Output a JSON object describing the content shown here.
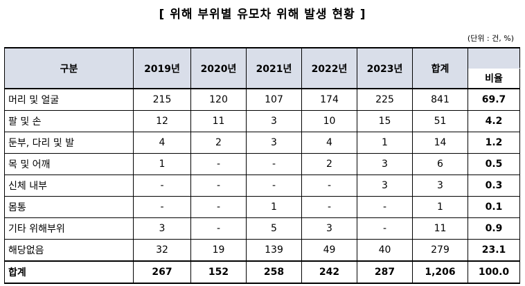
{
  "title": "[ 위해 부위별 유모차 위해 발생 현황 ]",
  "unit": "(단위 : 건, %)",
  "table": {
    "header": {
      "category": "구분",
      "years": [
        "2019년",
        "2020년",
        "2021년",
        "2022년",
        "2023년"
      ],
      "total": "합계",
      "ratio": "비율"
    },
    "rows": [
      {
        "label": "머리 및 얼굴",
        "values": [
          "215",
          "120",
          "107",
          "174",
          "225"
        ],
        "total": "841",
        "ratio": "69.7"
      },
      {
        "label": "팔 및 손",
        "values": [
          "12",
          "11",
          "3",
          "10",
          "15"
        ],
        "total": "51",
        "ratio": "4.2"
      },
      {
        "label": "둔부, 다리 및 발",
        "values": [
          "4",
          "2",
          "3",
          "4",
          "1"
        ],
        "total": "14",
        "ratio": "1.2"
      },
      {
        "label": "목 및 어깨",
        "values": [
          "1",
          "-",
          "-",
          "2",
          "3"
        ],
        "total": "6",
        "ratio": "0.5"
      },
      {
        "label": "신체 내부",
        "values": [
          "-",
          "-",
          "-",
          "-",
          "3"
        ],
        "total": "3",
        "ratio": "0.3"
      },
      {
        "label": "몸통",
        "values": [
          "-",
          "-",
          "1",
          "-",
          "-"
        ],
        "total": "1",
        "ratio": "0.1"
      },
      {
        "label": "기타 위해부위",
        "values": [
          "3",
          "-",
          "5",
          "3",
          "-"
        ],
        "total": "11",
        "ratio": "0.9"
      },
      {
        "label": "해당없음",
        "values": [
          "32",
          "19",
          "139",
          "49",
          "40"
        ],
        "total": "279",
        "ratio": "23.1"
      }
    ],
    "total_row": {
      "label": "합계",
      "values": [
        "267",
        "152",
        "258",
        "242",
        "287"
      ],
      "total": "1,206",
      "ratio": "100.0"
    }
  }
}
